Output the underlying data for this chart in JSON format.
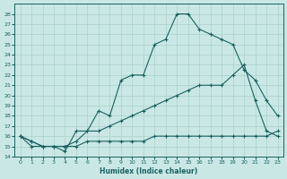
{
  "xlabel": "Humidex (Indice chaleur)",
  "xlim": [
    -0.5,
    23.5
  ],
  "ylim": [
    14,
    29
  ],
  "xticks": [
    0,
    1,
    2,
    3,
    4,
    5,
    6,
    7,
    8,
    9,
    10,
    11,
    12,
    13,
    14,
    15,
    16,
    17,
    18,
    19,
    20,
    21,
    22,
    23
  ],
  "yticks": [
    14,
    15,
    16,
    17,
    18,
    19,
    20,
    21,
    22,
    23,
    24,
    25,
    26,
    27,
    28
  ],
  "bg_color": "#c9e8e5",
  "line_color": "#1a6060",
  "grid_color": "#aad0cc",
  "line1_x": [
    0,
    1,
    2,
    3,
    4,
    5,
    6,
    7,
    8,
    9,
    10,
    11,
    12,
    13,
    14,
    15,
    16,
    17,
    18,
    19,
    20,
    21,
    22,
    23
  ],
  "line1_y": [
    16,
    15,
    15,
    15,
    14.5,
    16.5,
    16.5,
    18.5,
    18,
    21.5,
    22,
    22,
    25,
    25.5,
    28,
    28,
    26.5,
    26,
    25.5,
    25,
    22.5,
    21.5,
    19.5,
    18
  ],
  "line2_x": [
    0,
    1,
    2,
    3,
    4,
    5,
    6,
    7,
    8,
    9,
    10,
    11,
    12,
    13,
    14,
    15,
    16,
    17,
    18,
    19,
    20,
    21,
    22,
    23
  ],
  "line2_y": [
    16,
    15.5,
    15,
    15,
    15,
    15,
    15.5,
    15.5,
    15.5,
    15.5,
    15.5,
    15.5,
    16,
    16,
    16,
    16,
    16,
    16,
    16,
    16,
    16,
    16,
    16,
    16.5
  ],
  "line3_x": [
    0,
    1,
    2,
    3,
    4,
    5,
    6,
    7,
    8,
    9,
    10,
    11,
    12,
    13,
    14,
    15,
    16,
    17,
    18,
    19,
    20,
    21,
    22,
    23
  ],
  "line3_y": [
    16,
    15.5,
    15,
    15,
    15,
    15.5,
    16.5,
    16.5,
    17,
    17.5,
    18,
    18.5,
    19,
    19.5,
    20,
    20.5,
    21,
    21,
    21,
    22,
    23,
    19.5,
    16.5,
    16
  ]
}
